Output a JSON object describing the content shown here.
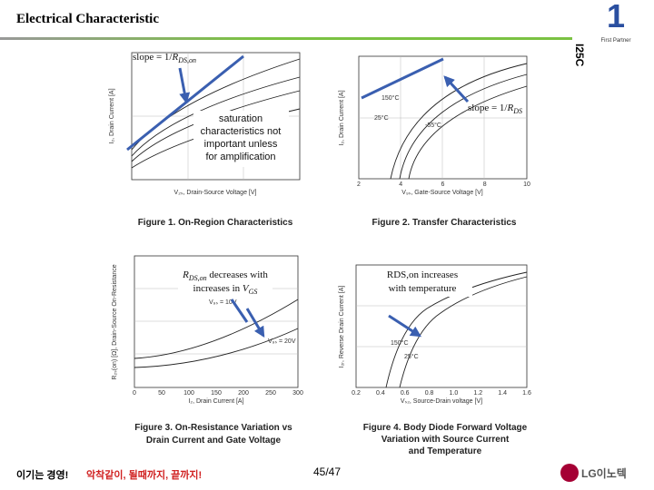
{
  "header": {
    "title": "Electrical Characteristic",
    "logo_text": "First Partner",
    "side_label": "I25C"
  },
  "figures": [
    {
      "caption": [
        "Figure 1. On-Region Characteristics"
      ],
      "x_label": "V₂ₛ, Drain-Source Voltage [V]",
      "y_label": "I₂, Drain Current [A]"
    },
    {
      "caption": [
        "Figure 2. Transfer Characteristics"
      ],
      "x_label": "V₉ₛ, Gate-Source Voltage [V]",
      "y_label": "I₂, Drain Current [A]",
      "x_ticks": [
        "2",
        "4",
        "6",
        "8",
        "10"
      ],
      "curve_labels": [
        "150°C",
        "25°C",
        "-55°C"
      ]
    },
    {
      "caption": [
        "Figure 3. On-Resistance Variation  vs",
        "Drain Current and Gate Voltage"
      ],
      "x_label": "I₂, Drain Current [A]",
      "y_label": "R₂ₛ(on) [Ω], Drain-Source On-Resistance",
      "x_ticks": [
        "0",
        "50",
        "100",
        "150",
        "200",
        "250",
        "300"
      ],
      "curve_labels": [
        "V₉ₛ = 10V",
        "V₉ₛ = 20V"
      ]
    },
    {
      "caption": [
        "Figure 4. Body Diode Forward Voltage",
        "Variation with Source Current",
        "and Temperature"
      ],
      "x_label": "Vₛ₂, Source-Drain voltage [V]",
      "y_label": "I₂ᵣ, Reverse Drain Current [A]",
      "x_ticks": [
        "0.2",
        "0.4",
        "0.6",
        "0.8",
        "1.0",
        "1.2",
        "1.4",
        "1.6"
      ],
      "curve_labels": [
        "150°C",
        "25°C"
      ]
    }
  ],
  "annotations": [
    {
      "parts": [
        "slope = 1/",
        "R",
        "DS,on"
      ]
    },
    {
      "lines": [
        "saturation",
        "characteristics not",
        "important unless",
        "for amplification"
      ]
    },
    {
      "parts": [
        "slope = 1/",
        "R",
        "DS"
      ]
    },
    {
      "parts": [
        "R",
        "DS,on",
        " decreases with",
        "increases in ",
        "V",
        "GS"
      ]
    },
    {
      "lines": [
        "RDS,on increases",
        "with temperature"
      ]
    }
  ],
  "footer": {
    "motto": "이기는 경영!",
    "slogan": "악착같이, 될때까지, 끝까지!",
    "page": "45/47",
    "company": "LG이노텍"
  }
}
